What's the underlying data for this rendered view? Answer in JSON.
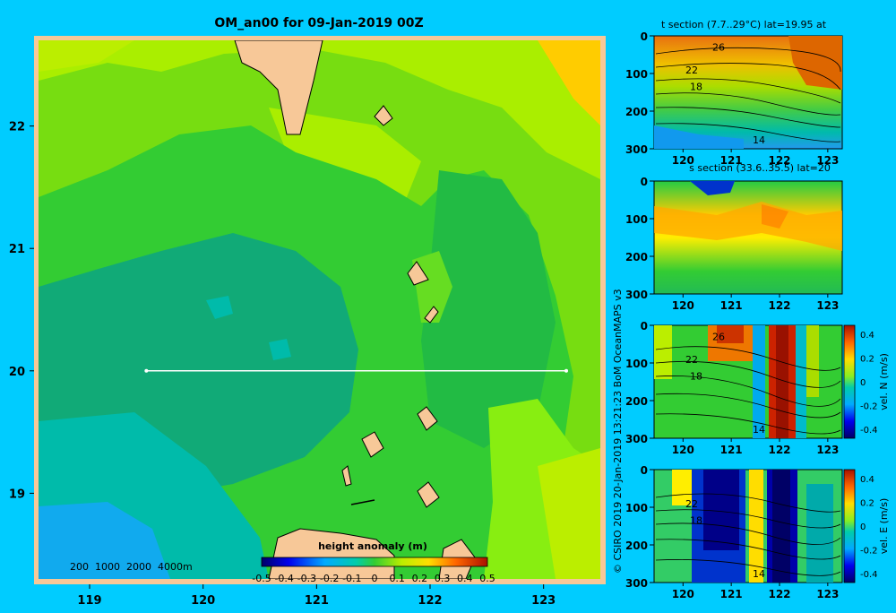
{
  "colors": {
    "background": "#00ccff",
    "land": "#f7c898",
    "frame": "#f7c898",
    "section_line": "#ffffff"
  },
  "map": {
    "title": "OM_an00 for 09-Jan-2019 00Z",
    "x_ticks": [
      "119",
      "120",
      "121",
      "122",
      "123"
    ],
    "y_ticks": [
      "22",
      "21",
      "20",
      "19"
    ],
    "xlim": [
      118.55,
      123.5
    ],
    "ylim": [
      18.3,
      22.7
    ],
    "depth_legend": "200  1000  2000  4000m",
    "colorbar_title": "height anomaly (m)",
    "colorbar_ticks": [
      "-0.5",
      "-0.4",
      "-0.3",
      "-0.2",
      "-0.1",
      "0",
      "0.1",
      "0.2",
      "0.3",
      "0.4",
      "0.5"
    ],
    "section_line": {
      "lat": 20,
      "lon_start": 119.5,
      "lon_end": 123.2
    }
  },
  "credit": "© CSIRO 2019   20-Jan-2019 13:21:23 BoM OceanMAPS v3",
  "panels": [
    {
      "title": "t section (7.7..29°C) lat=19.95 at",
      "y_ticks": [
        "0",
        "100",
        "200",
        "300"
      ],
      "x_ticks": [
        "120",
        "121",
        "122",
        "123"
      ],
      "contour_labels": [
        "26",
        "22",
        "18",
        "14"
      ],
      "colorbar_label": ""
    },
    {
      "title": "s section (33.6..35.5) lat=20",
      "y_ticks": [
        "0",
        "100",
        "200",
        "300"
      ],
      "x_ticks": [
        "120",
        "121",
        "122",
        "123"
      ],
      "contour_labels": [],
      "colorbar_label": ""
    },
    {
      "title": "",
      "y_ticks": [
        "0",
        "100",
        "200",
        "300"
      ],
      "x_ticks": [
        "120",
        "121",
        "122",
        "123"
      ],
      "contour_labels": [
        "26",
        "22",
        "18",
        "14"
      ],
      "colorbar_label": "vel. N (m/s)",
      "colorbar_ticks": [
        "0.4",
        "0.2",
        "0",
        "-0.2",
        "-0.4"
      ]
    },
    {
      "title": "",
      "y_ticks": [
        "0",
        "100",
        "200",
        "300"
      ],
      "x_ticks": [
        "120",
        "121",
        "122",
        "123"
      ],
      "contour_labels": [
        "22",
        "18",
        "14"
      ],
      "colorbar_label": "vel. E (m/s)",
      "colorbar_ticks": [
        "0.4",
        "0.2",
        "0",
        "-0.2",
        "-0.4"
      ]
    }
  ],
  "chart_data": {
    "type": "heatmap",
    "title": "OM_an00 for 09-Jan-2019 00Z",
    "colorbar_title": "height anomaly (m)",
    "x": [
      119,
      120,
      121,
      122,
      123
    ],
    "y": [
      19,
      20,
      21,
      22
    ],
    "xlim": [
      118.55,
      123.5
    ],
    "ylim": [
      18.3,
      22.7
    ],
    "value_range": [
      -0.5,
      0.5
    ],
    "section_line": {
      "lat": 20,
      "lon": [
        119.5,
        123.2
      ]
    },
    "subplots": [
      {
        "type": "heatmap",
        "title": "t section (7.7..29°C) lat=19.95 at",
        "x_ticks": [
          120,
          121,
          122,
          123
        ],
        "y_ticks": [
          0,
          100,
          200,
          300
        ],
        "contours": [
          26,
          22,
          18,
          14
        ]
      },
      {
        "type": "heatmap",
        "title": "s section (33.6..35.5) lat=20",
        "x_ticks": [
          120,
          121,
          122,
          123
        ],
        "y_ticks": [
          0,
          100,
          200,
          300
        ]
      },
      {
        "type": "heatmap",
        "colorbar": "vel. N (m/s)",
        "range": [
          -0.4,
          0.4
        ],
        "x_ticks": [
          120,
          121,
          122,
          123
        ],
        "y_ticks": [
          0,
          100,
          200,
          300
        ],
        "contours": [
          26,
          22,
          18,
          14
        ]
      },
      {
        "type": "heatmap",
        "colorbar": "vel. E (m/s)",
        "range": [
          -0.4,
          0.4
        ],
        "x_ticks": [
          120,
          121,
          122,
          123
        ],
        "y_ticks": [
          0,
          100,
          200,
          300
        ],
        "contours": [
          22,
          18,
          14
        ]
      }
    ]
  }
}
